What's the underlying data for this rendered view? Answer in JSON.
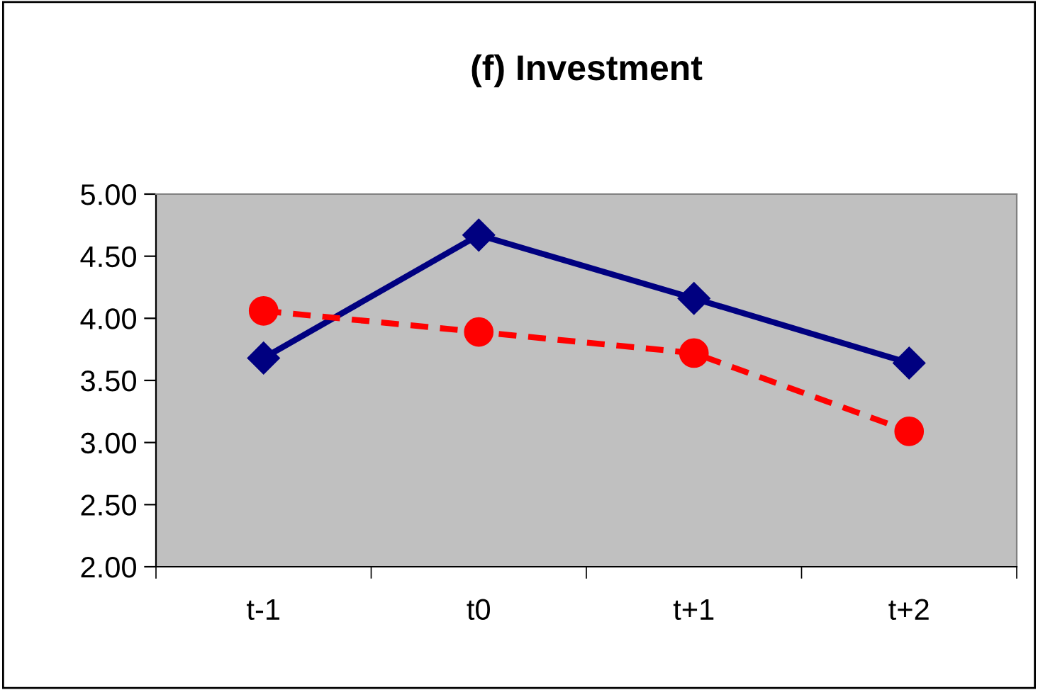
{
  "chart_data": {
    "type": "line",
    "title": "(f) Investment",
    "categories": [
      "t-1",
      "t0",
      "t+1",
      "t+2"
    ],
    "series": [
      {
        "color": "#000080",
        "values": [
          3.68,
          4.67,
          4.16,
          3.64
        ],
        "marker": "diamond",
        "line_style": "solid"
      },
      {
        "color": "#ff0000",
        "values": [
          4.06,
          3.89,
          3.72,
          3.09
        ],
        "marker": "circle",
        "line_style": "dashed"
      }
    ],
    "ylim": [
      2,
      5
    ],
    "yticks": [
      {
        "value": 2,
        "label": "2.00"
      },
      {
        "value": 2.5,
        "label": "2.50"
      },
      {
        "value": 3,
        "label": "3.00"
      },
      {
        "value": 3.5,
        "label": "3.50"
      },
      {
        "value": 4,
        "label": "4.00"
      },
      {
        "value": 4.5,
        "label": "4.50"
      },
      {
        "value": 5,
        "label": "5.00"
      }
    ],
    "grid": false,
    "legend": false
  }
}
